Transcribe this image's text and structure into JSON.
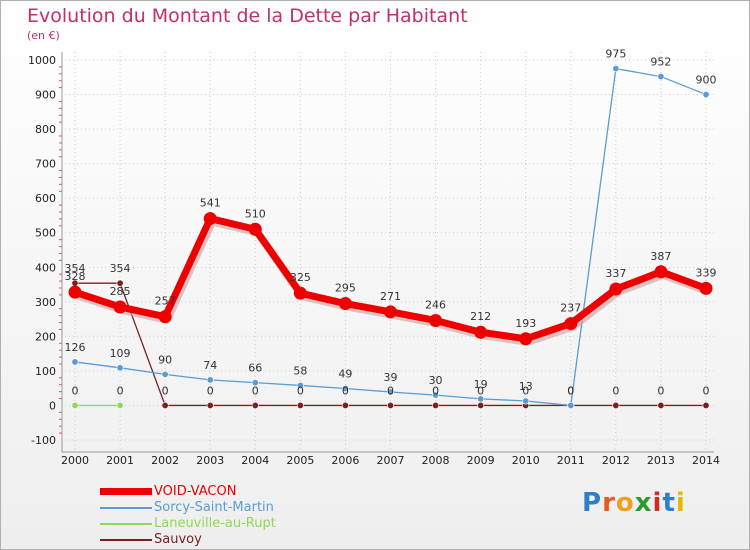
{
  "chart_data": {
    "type": "line",
    "title": "Evolution du Montant de la Dette par Habitant",
    "unit": "(en €)",
    "categories": [
      "2000",
      "2001",
      "2002",
      "2003",
      "2004",
      "2005",
      "2006",
      "2007",
      "2008",
      "2009",
      "2010",
      "2011",
      "2012",
      "2013",
      "2014"
    ],
    "ylim": [
      -100,
      1000
    ],
    "yticks": [
      -100,
      0,
      100,
      200,
      300,
      400,
      500,
      600,
      700,
      800,
      900,
      1000
    ],
    "series": [
      {
        "name": "VOID-VACON",
        "color": "#ee0000",
        "values": [
          328,
          285,
          257,
          541,
          510,
          325,
          295,
          271,
          246,
          212,
          193,
          237,
          337,
          387,
          339
        ]
      },
      {
        "name": "Sorcy-Saint-Martin",
        "color": "#5b9bd5",
        "values": [
          126,
          109,
          90,
          74,
          66,
          58,
          49,
          39,
          30,
          19,
          13,
          0,
          975,
          952,
          900
        ]
      },
      {
        "name": "Laneuville-au-Rupt",
        "color": "#8ed85a",
        "values": [
          0,
          0,
          null,
          null,
          null,
          null,
          null,
          null,
          null,
          null,
          null,
          null,
          null,
          null,
          null
        ]
      },
      {
        "name": "Sauvoy",
        "color": "#7a2020",
        "values": [
          354,
          354,
          0,
          0,
          0,
          0,
          0,
          0,
          0,
          0,
          0,
          0,
          0,
          0,
          0
        ]
      }
    ]
  },
  "logo": {
    "letters": [
      "P",
      "r",
      "o",
      "x",
      "i",
      "t",
      "i"
    ],
    "colors": [
      "#2c7fc9",
      "#e65a1e",
      "#f0a020",
      "#2c9a2c",
      "#d62828",
      "#2c7fc9",
      "#e6b800"
    ]
  }
}
